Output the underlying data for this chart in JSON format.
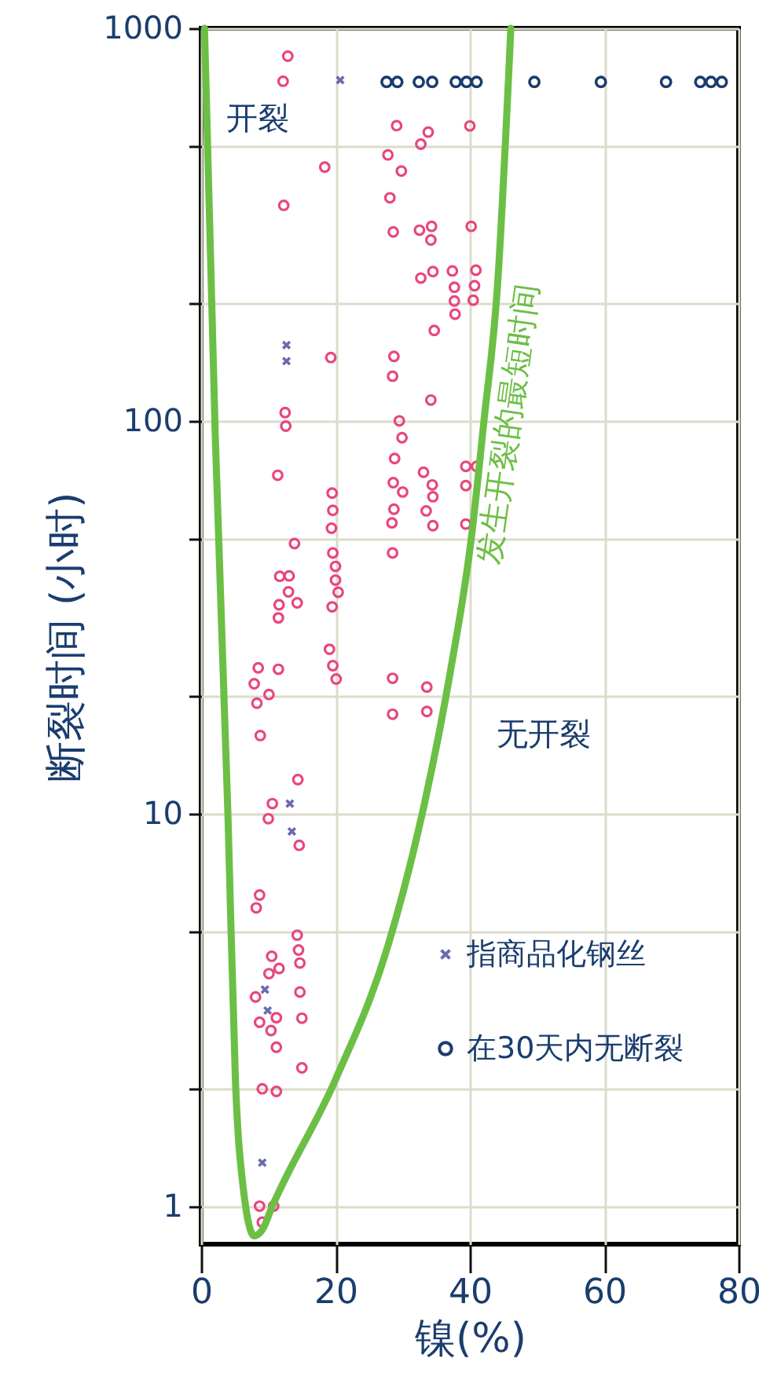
{
  "chart_data": {
    "type": "scatter",
    "xlabel": "镍(%)",
    "ylabel": "断裂时间 (小时)",
    "xlim": [
      0,
      80
    ],
    "xticks": [
      0,
      20,
      40,
      60,
      80
    ],
    "ylim": [
      0.8,
      1000
    ],
    "yticks": [
      1,
      {
        "value": 2,
        "label": null
      },
      {
        "value": 5,
        "label": null
      },
      10,
      {
        "value": 20,
        "label": null
      },
      {
        "value": 50,
        "label": null
      },
      100,
      {
        "value": 200,
        "label": null
      },
      {
        "value": 500,
        "label": null
      },
      1000
    ],
    "log": "y",
    "grid": true,
    "legend": "bottom right",
    "annotations": [
      "开裂",
      "无开裂",
      "发生开裂的最短时间"
    ],
    "series": [
      {
        "marker": "circle",
        "color": "#e8467c",
        "x": [
          12.9,
          12.2,
          29.1,
          33.8,
          32.7,
          40,
          27.8,
          18.4,
          29.8,
          28.1,
          12.3,
          28.6,
          32.5,
          34.3,
          34.2,
          40.2,
          32.7,
          34.5,
          37.4,
          40.9,
          37.7,
          40.7,
          37.7,
          40.5,
          37.8,
          34.7,
          19.3,
          28.7,
          28.5,
          34.2,
          12.5,
          12.6,
          29.5,
          29.9,
          28.8,
          11.4,
          33.1,
          34.4,
          34.5,
          28.6,
          30,
          39.4,
          41,
          39.4,
          28.7,
          33.5,
          28.4,
          34.5,
          39.4,
          19.5,
          19.6,
          19.4,
          19.6,
          20,
          20,
          20.4,
          19.5,
          28.5,
          13.9,
          11.7,
          13.1,
          13,
          14.3,
          11.6,
          11.5,
          19.1,
          19.6,
          20.1,
          28.5,
          33.6,
          28.5,
          33.6,
          8.5,
          11.5,
          7.9,
          10.1,
          8.3,
          8.8,
          14.4,
          10.6,
          10,
          14.6,
          8.7,
          8.2,
          14.3,
          14.5,
          14.7,
          10.5,
          11.6,
          10.1,
          14.7,
          8.1,
          11.2,
          8.7,
          15,
          10.4,
          11.2,
          15,
          9.1,
          11.2,
          8.7,
          10.8,
          9.1
        ],
        "values": [
          849,
          733,
          565,
          544,
          507,
          564,
          476,
          443,
          433,
          370,
          354,
          303,
          306,
          313,
          289,
          313,
          231,
          240,
          241,
          242,
          219,
          221,
          202,
          203,
          187,
          170,
          145,
          146,
          130,
          113,
          105,
          97,
          100,
          90.6,
          80.2,
          72.7,
          74,
          68.7,
          64.1,
          69.6,
          65.9,
          76.6,
          76.6,
          68.4,
          59.6,
          59,
          55,
          54.1,
          54.6,
          65.5,
          59.2,
          53.3,
          46.1,
          42.6,
          39.3,
          36.6,
          33.6,
          46.1,
          48.7,
          40.2,
          40.3,
          36.7,
          34.4,
          34,
          31.5,
          26.2,
          23.8,
          22,
          22.1,
          21,
          17.9,
          18.2,
          23.5,
          23.3,
          21.4,
          20.1,
          19.1,
          15.8,
          12.2,
          10.6,
          9.7,
          8.3,
          6.2,
          5.75,
          4.9,
          4.49,
          4.16,
          4.33,
          4.03,
          3.91,
          3.51,
          3.41,
          3.02,
          2.94,
          3.01,
          2.8,
          2.54,
          2.25,
          1.99,
          1.96,
          1,
          1,
          0.91
        ]
      },
      {
        "marker": "cross",
        "name": "指商品化钢丝",
        "color": "#6a6ab0",
        "x": [
          20.7,
          12.7,
          12.7,
          13.2,
          13.5,
          9.5,
          9.9,
          9.1
        ],
        "values": [
          738,
          156,
          142,
          10.6,
          9,
          3.56,
          3.15,
          1.29
        ]
      },
      {
        "marker": "circle",
        "name": "在30天内无断裂",
        "color": "#1a3d6e",
        "x": [
          27.6,
          29.2,
          32.4,
          34.4,
          37.9,
          39.5,
          41,
          49.6,
          59.5,
          69.2,
          74.3,
          75.9,
          77.5
        ],
        "values": [
          730,
          730,
          730,
          730,
          730,
          730,
          730,
          730,
          730,
          730,
          730,
          730,
          730
        ]
      },
      {
        "type": "line",
        "color": "#6cbf45",
        "x": [
          0.5,
          2.1,
          4,
          5.1,
          6.3,
          7.9,
          9.1,
          10.6,
          20,
          27.8,
          32.8,
          37.1,
          40.2,
          42.1,
          44.1,
          46.1
        ],
        "values": [
          1000,
          92,
          9.8,
          2.1,
          1.1,
          0.84,
          0.87,
          1,
          2.1,
          4.6,
          9.8,
          23,
          50,
          100,
          219,
          1000
        ]
      }
    ]
  }
}
